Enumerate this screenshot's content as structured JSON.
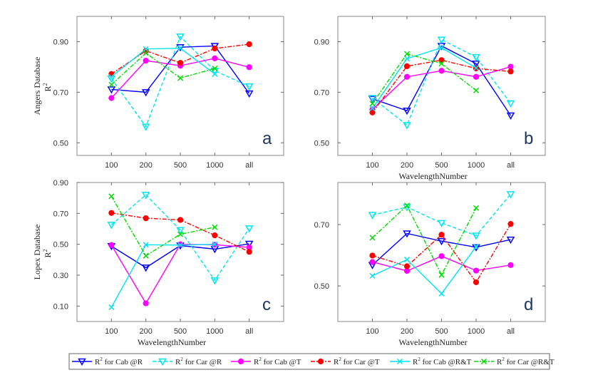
{
  "chart_data": {
    "type": "line",
    "categories": [
      "100",
      "200",
      "500",
      "1000",
      "all"
    ],
    "series_styles": [
      {
        "name": "R² for Cab @R",
        "color": "#0000ff",
        "dash": "solid",
        "marker": "triangle-down"
      },
      {
        "name": "R² for Car @R",
        "color": "#00e5ee",
        "dash": "dashed",
        "marker": "triangle-down"
      },
      {
        "name": "R² for Cab @T",
        "color": "#ff00ff",
        "dash": "solid",
        "marker": "circle"
      },
      {
        "name": "R² for Car @T",
        "color": "#ff0000",
        "dash": "dashdot",
        "marker": "circle"
      },
      {
        "name": "R² for Cab @R&T",
        "color": "#00e5ee",
        "dash": "solid",
        "marker": "x"
      },
      {
        "name": "R² for Car @R&T",
        "color": "#00dd00",
        "dash": "dashdot",
        "marker": "x"
      }
    ],
    "legend": {
      "placement": "bottom",
      "entries": [
        {
          "prefix": "R",
          "sup": "2",
          "text": " for Cab @R"
        },
        {
          "prefix": "R",
          "sup": "2",
          "text": " for Car @R"
        },
        {
          "prefix": "R",
          "sup": "2",
          "text": " for Cab @T"
        },
        {
          "prefix": "R",
          "sup": "2",
          "text": " for Car @T"
        },
        {
          "prefix": "R",
          "sup": "2",
          "text": " for Cab @R&T"
        },
        {
          "prefix": "R",
          "sup": "2",
          "text": " for Car @R&T"
        }
      ]
    },
    "panels": [
      {
        "label": "a",
        "ylabel_db": "Angers Database",
        "ylabel": "R",
        "ylabel_sup": "2",
        "xlabel": "",
        "ylim": [
          0.45,
          1.0
        ],
        "yticks": [
          "0.50",
          "0.70",
          "0.90"
        ],
        "series": [
          [
            0.711,
            0.7,
            0.878,
            0.883,
            0.695
          ],
          [
            0.754,
            0.564,
            0.92,
            0.785,
            0.723
          ],
          [
            0.677,
            0.825,
            0.805,
            0.834,
            0.799
          ],
          [
            0.772,
            0.864,
            0.816,
            0.873,
            0.89
          ],
          [
            0.761,
            0.871,
            0.874,
            0.772,
            null
          ],
          [
            0.73,
            0.855,
            0.756,
            0.794,
            null
          ]
        ]
      },
      {
        "label": "b",
        "ylabel_db": "",
        "ylabel": "",
        "ylabel_sup": "",
        "xlabel": "WavelengthNumber",
        "ylim": [
          0.45,
          1.0
        ],
        "yticks": [
          "0.50",
          "0.70",
          "0.90"
        ],
        "series": [
          [
            0.674,
            0.627,
            0.883,
            0.813,
            0.608
          ],
          [
            0.677,
            0.57,
            0.908,
            0.839,
            0.656
          ],
          [
            0.632,
            0.761,
            0.785,
            0.761,
            0.801
          ],
          [
            0.62,
            0.803,
            0.827,
            0.794,
            0.782
          ],
          [
            0.636,
            0.833,
            0.876,
            0.796,
            null
          ],
          [
            0.655,
            0.852,
            0.813,
            0.707,
            null
          ]
        ]
      },
      {
        "label": "c",
        "ylabel_db": "Lopex Database",
        "ylabel": "R",
        "ylabel_sup": "2",
        "xlabel": "WavelengthNumber",
        "ylim": [
          0.0,
          0.9
        ],
        "yticks": [
          "0.10",
          "0.30",
          "0.50",
          "0.70",
          "0.90"
        ],
        "series": [
          [
            0.488,
            0.349,
            0.492,
            0.469,
            0.503
          ],
          [
            0.626,
            0.82,
            0.592,
            0.266,
            0.603
          ],
          [
            0.495,
            0.118,
            0.5,
            0.497,
            0.48
          ],
          [
            0.703,
            0.669,
            0.658,
            0.558,
            0.451
          ],
          [
            0.092,
            0.497,
            0.495,
            0.5,
            null
          ],
          [
            0.811,
            0.426,
            0.565,
            0.611,
            null
          ]
        ]
      },
      {
        "label": "d",
        "ylabel_db": "",
        "ylabel": "",
        "ylabel_sup": "",
        "xlabel": "WavelengthNumber",
        "ylim": [
          0.384,
          0.837
        ],
        "yticks": [
          "0.50",
          "0.70"
        ],
        "series": [
          [
            0.568,
            0.671,
            0.646,
            0.626,
            0.651
          ],
          [
            0.731,
            0.757,
            0.705,
            0.664,
            0.799
          ],
          [
            0.578,
            0.549,
            0.597,
            0.55,
            0.568
          ],
          [
            0.599,
            0.564,
            0.667,
            0.512,
            0.702
          ],
          [
            0.533,
            0.586,
            0.475,
            0.628,
            null
          ],
          [
            0.657,
            0.762,
            0.536,
            0.754,
            null
          ]
        ]
      }
    ]
  }
}
